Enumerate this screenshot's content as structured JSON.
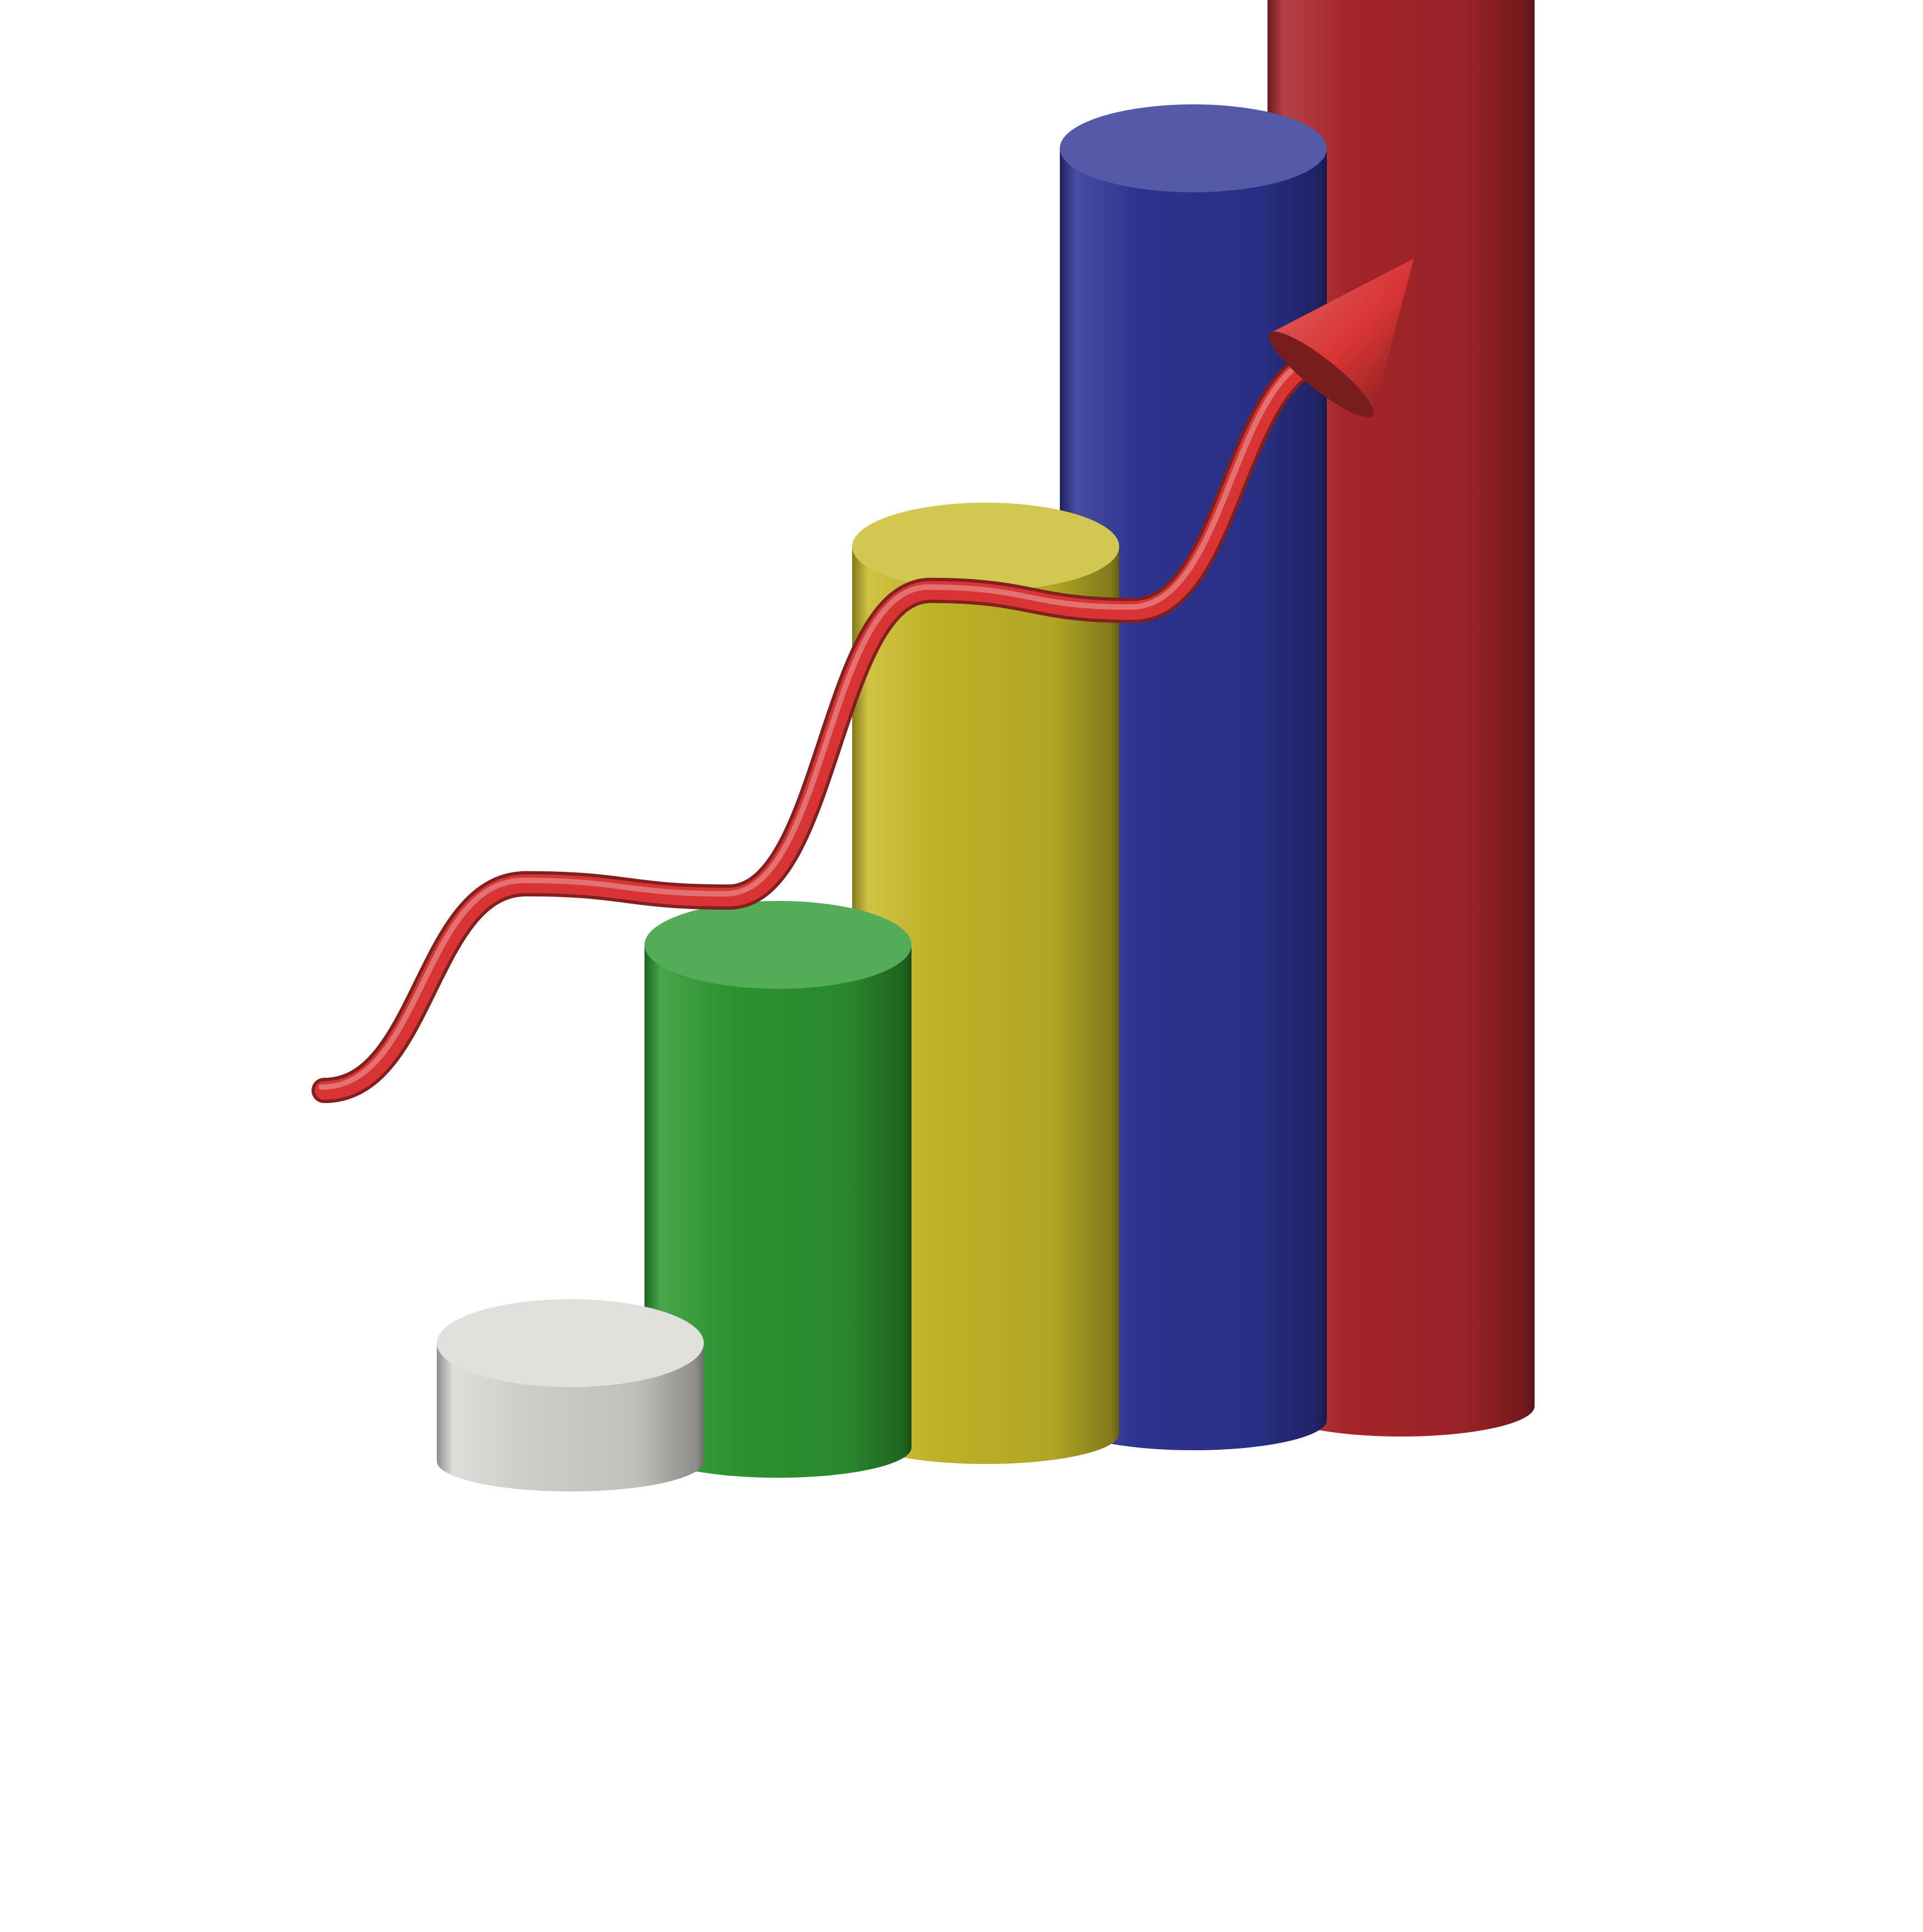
{
  "chart_data": {
    "type": "bar",
    "style": "3d-cylinder",
    "values": [
      1,
      2,
      3,
      4,
      5
    ],
    "bar_colors": [
      "#d9d9d6",
      "#2f9a33",
      "#c8bb2a",
      "#2f3595",
      "#ad272b"
    ],
    "trend": {
      "type": "line",
      "direction": "up",
      "arrowhead": true,
      "color": "#d83434",
      "values": [
        0,
        1.55,
        1.45,
        3.75,
        3.6,
        5.5
      ]
    },
    "grid": false,
    "legend": "none"
  }
}
